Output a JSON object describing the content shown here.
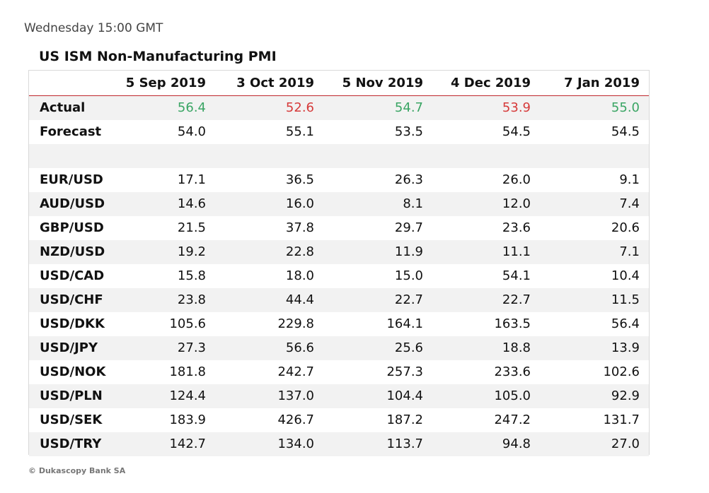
{
  "subtitle": "Wednesday 15:00 GMT",
  "footer": "© Dukascopy Bank SA",
  "colors": {
    "positive": "#3aa564",
    "negative": "#d63a3a",
    "header_rule": "#c0272d",
    "row_shade": "#f2f2f2"
  },
  "chart_data": {
    "type": "table",
    "title": "US ISM Non-Manufacturing PMI",
    "columns": [
      "5 Sep 2019",
      "3 Oct 2019",
      "5 Nov 2019",
      "4 Dec 2019",
      "7 Jan 2019"
    ],
    "rows": [
      {
        "label": "Actual",
        "values": [
          "56.4",
          "52.6",
          "54.7",
          "53.9",
          "55.0"
        ],
        "colors": [
          "positive",
          "negative",
          "positive",
          "negative",
          "positive"
        ]
      },
      {
        "label": "Forecast",
        "values": [
          "54.0",
          "55.1",
          "53.5",
          "54.5",
          "54.5"
        ]
      },
      {
        "label": "",
        "values": [
          "",
          "",
          "",
          "",
          ""
        ]
      },
      {
        "label": "EUR/USD",
        "values": [
          "17.1",
          "36.5",
          "26.3",
          "26.0",
          "9.1"
        ]
      },
      {
        "label": "AUD/USD",
        "values": [
          "14.6",
          "16.0",
          "8.1",
          "12.0",
          "7.4"
        ]
      },
      {
        "label": "GBP/USD",
        "values": [
          "21.5",
          "37.8",
          "29.7",
          "23.6",
          "20.6"
        ]
      },
      {
        "label": "NZD/USD",
        "values": [
          "19.2",
          "22.8",
          "11.9",
          "11.1",
          "7.1"
        ]
      },
      {
        "label": "USD/CAD",
        "values": [
          "15.8",
          "18.0",
          "15.0",
          "54.1",
          "10.4"
        ]
      },
      {
        "label": "USD/CHF",
        "values": [
          "23.8",
          "44.4",
          "22.7",
          "22.7",
          "11.5"
        ]
      },
      {
        "label": "USD/DKK",
        "values": [
          "105.6",
          "229.8",
          "164.1",
          "163.5",
          "56.4"
        ]
      },
      {
        "label": "USD/JPY",
        "values": [
          "27.3",
          "56.6",
          "25.6",
          "18.8",
          "13.9"
        ]
      },
      {
        "label": "USD/NOK",
        "values": [
          "181.8",
          "242.7",
          "257.3",
          "233.6",
          "102.6"
        ]
      },
      {
        "label": "USD/PLN",
        "values": [
          "124.4",
          "137.0",
          "104.4",
          "105.0",
          "92.9"
        ]
      },
      {
        "label": "USD/SEK",
        "values": [
          "183.9",
          "426.7",
          "187.2",
          "247.2",
          "131.7"
        ]
      },
      {
        "label": "USD/TRY",
        "values": [
          "142.7",
          "134.0",
          "113.7",
          "94.8",
          "27.0"
        ]
      }
    ]
  }
}
